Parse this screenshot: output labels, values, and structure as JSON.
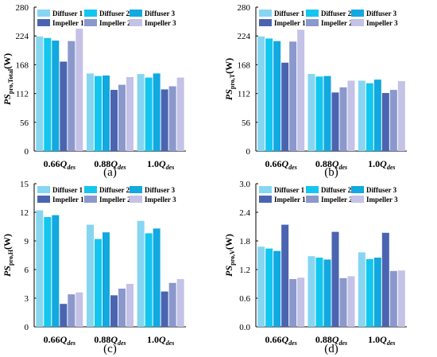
{
  "colors": {
    "diffuser_1": "#86d6f2",
    "diffuser_2": "#13c6ef",
    "diffuser_3": "#12a8e0",
    "impeller_1": "#4a64b0",
    "impeller_2": "#8b98cc",
    "impeller_3": "#c4c2e6"
  },
  "chart_data": [
    {
      "type": "bar",
      "panel_label": "(a)",
      "ylabel": "PS_pro,Total(W)",
      "ylabel_parts": {
        "main": "PS",
        "sub": "pro,Total",
        "unit": "(W)"
      },
      "categories": [
        "0.66Q_des",
        "0.88Q_des",
        "1.0Q_des"
      ],
      "category_labels": [
        {
          "coef": "0.66",
          "main": "Q",
          "sub": "des"
        },
        {
          "coef": "0.88",
          "main": "Q",
          "sub": "des"
        },
        {
          "coef": "1.0",
          "main": "Q",
          "sub": "des"
        }
      ],
      "ylim": [
        0,
        280
      ],
      "yticks": [
        "0",
        "56",
        "112",
        "168",
        "224",
        "280"
      ],
      "legend_position": "top",
      "series": [
        {
          "name": "Diffuser 1",
          "color_key": "diffuser_1",
          "values": [
            223,
            151,
            150
          ]
        },
        {
          "name": "Diffuser 2",
          "color_key": "diffuser_2",
          "values": [
            220,
            146,
            143
          ]
        },
        {
          "name": "Diffuser 3",
          "color_key": "diffuser_3",
          "values": [
            215,
            147,
            151
          ]
        },
        {
          "name": "Impeller 1",
          "color_key": "impeller_1",
          "values": [
            174,
            119,
            120
          ]
        },
        {
          "name": "Impeller 2",
          "color_key": "impeller_2",
          "values": [
            214,
            129,
            126
          ]
        },
        {
          "name": "Impeller 3",
          "color_key": "impeller_3",
          "values": [
            238,
            144,
            143
          ]
        }
      ]
    },
    {
      "type": "bar",
      "panel_label": "(b)",
      "ylabel": "PS_pro,T(W)",
      "ylabel_parts": {
        "main": "PS",
        "sub": "pro,T",
        "unit": "(W)"
      },
      "categories": [
        "0.66Q_des",
        "0.88Q_des",
        "1.0Q_des"
      ],
      "category_labels": [
        {
          "coef": "0.66",
          "main": "Q",
          "sub": "des"
        },
        {
          "coef": "0.88",
          "main": "Q",
          "sub": "des"
        },
        {
          "coef": "1.0",
          "main": "Q",
          "sub": "des"
        }
      ],
      "ylim": [
        0,
        280
      ],
      "yticks": [
        "0",
        "56",
        "112",
        "168",
        "224",
        "280"
      ],
      "legend_position": "top",
      "series": [
        {
          "name": "Diffuser 1",
          "color_key": "diffuser_1",
          "values": [
            223,
            150,
            137
          ]
        },
        {
          "name": "Diffuser 2",
          "color_key": "diffuser_2",
          "values": [
            219,
            145,
            132
          ]
        },
        {
          "name": "Diffuser 3",
          "color_key": "diffuser_3",
          "values": [
            214,
            146,
            139
          ]
        },
        {
          "name": "Impeller 1",
          "color_key": "impeller_1",
          "values": [
            172,
            114,
            113
          ]
        },
        {
          "name": "Impeller 2",
          "color_key": "impeller_2",
          "values": [
            213,
            124,
            119
          ]
        },
        {
          "name": "Impeller 3",
          "color_key": "impeller_3",
          "values": [
            236,
            137,
            136
          ]
        }
      ]
    },
    {
      "type": "bar",
      "panel_label": "(c)",
      "ylabel": "PS_pro,H(W)",
      "ylabel_parts": {
        "main": "PS",
        "sub": "pro,H",
        "unit": "(W)"
      },
      "categories": [
        "0.66Q_des",
        "0.88Q_des",
        "1.0Q_des"
      ],
      "category_labels": [
        {
          "coef": "0.66",
          "main": "Q",
          "sub": "des"
        },
        {
          "coef": "0.88",
          "main": "Q",
          "sub": "des"
        },
        {
          "coef": "1.0",
          "main": "Q",
          "sub": "des"
        }
      ],
      "ylim": [
        0,
        15
      ],
      "yticks": [
        "0",
        "3",
        "6",
        "9",
        "12",
        "15"
      ],
      "legend_position": "top",
      "series": [
        {
          "name": "Diffuser 1",
          "color_key": "diffuser_1",
          "values": [
            12.2,
            10.7,
            11.1
          ]
        },
        {
          "name": "Diffuser 2",
          "color_key": "diffuser_2",
          "values": [
            11.5,
            9.2,
            9.8
          ]
        },
        {
          "name": "Diffuser 3",
          "color_key": "diffuser_3",
          "values": [
            11.7,
            9.9,
            10.3
          ]
        },
        {
          "name": "Impeller 1",
          "color_key": "impeller_1",
          "values": [
            2.4,
            3.3,
            3.7
          ]
        },
        {
          "name": "Impeller 2",
          "color_key": "impeller_2",
          "values": [
            3.4,
            4.0,
            4.6
          ]
        },
        {
          "name": "Impeller 3",
          "color_key": "impeller_3",
          "values": [
            3.6,
            4.5,
            5.0
          ]
        }
      ]
    },
    {
      "type": "bar",
      "panel_label": "(d)",
      "ylabel": "PS_pro,V(W)",
      "ylabel_parts": {
        "main": "PS",
        "sub": "pro,V",
        "unit": "(W)"
      },
      "categories": [
        "0.66Q_des",
        "0.88Q_des",
        "1.0Q_des"
      ],
      "category_labels": [
        {
          "coef": "0.66",
          "main": "Q",
          "sub": "des"
        },
        {
          "coef": "0.88",
          "main": "Q",
          "sub": "des"
        },
        {
          "coef": "1.0",
          "main": "Q",
          "sub": "des"
        }
      ],
      "ylim": [
        0,
        3.0
      ],
      "yticks": [
        "0.0",
        "0.6",
        "1.2",
        "1.8",
        "2.4",
        "3.0"
      ],
      "legend_position": "top",
      "series": [
        {
          "name": "Diffuser 1",
          "color_key": "diffuser_1",
          "values": [
            1.68,
            1.48,
            1.56
          ]
        },
        {
          "name": "Diffuser 2",
          "color_key": "diffuser_2",
          "values": [
            1.64,
            1.45,
            1.42
          ]
        },
        {
          "name": "Diffuser 3",
          "color_key": "diffuser_3",
          "values": [
            1.59,
            1.41,
            1.45
          ]
        },
        {
          "name": "Impeller 1",
          "color_key": "impeller_1",
          "values": [
            2.14,
            1.99,
            1.97
          ]
        },
        {
          "name": "Impeller 2",
          "color_key": "impeller_2",
          "values": [
            1.0,
            1.02,
            1.17
          ]
        },
        {
          "name": "Impeller 3",
          "color_key": "impeller_3",
          "values": [
            1.03,
            1.06,
            1.18
          ]
        }
      ]
    }
  ]
}
